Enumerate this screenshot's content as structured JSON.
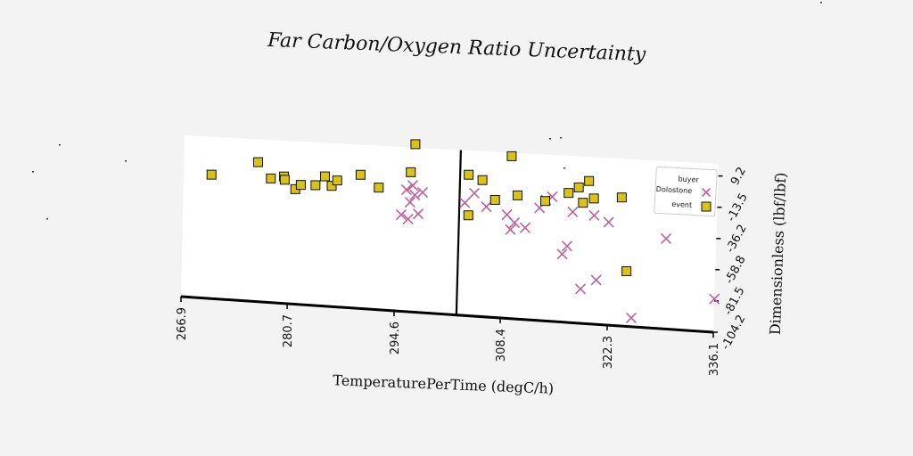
{
  "chart_data": {
    "type": "scatter",
    "title": "Far Carbon/Oxygen Ratio Uncertainty",
    "xlabel": "TemperaturePerTime (degC/h)",
    "ylabel": "Dimensionless (lbf/lbf)",
    "xlim": [
      266.9,
      336.1
    ],
    "ylim": [
      -104.2,
      18.0
    ],
    "x_ticks": [
      "266.9",
      "280.7",
      "294.6",
      "308.4",
      "322.3",
      "336.1"
    ],
    "y_ticks": [
      "9.2",
      "-13.5",
      "-36.2",
      "-58.8",
      "-81.5",
      "-104.2"
    ],
    "vertical_line_x": 302.7,
    "legend": {
      "title": "buyer",
      "placement": "top-right",
      "entries": [
        "Dolostone",
        "event"
      ]
    },
    "series": [
      {
        "name": "Dolostone",
        "marker": "x",
        "color": "#c0609a",
        "points": [
          [
            295.2,
            -32.4
          ],
          [
            295.8,
            -13.6
          ],
          [
            296.6,
            -10.1
          ],
          [
            296.3,
            -22.7
          ],
          [
            296.9,
            -17.2
          ],
          [
            297.4,
            -31.1
          ],
          [
            296.1,
            -35.3
          ],
          [
            297.9,
            -14.9
          ],
          [
            303.4,
            -20.8
          ],
          [
            304.6,
            -13.3
          ],
          [
            306.2,
            -22.8
          ],
          [
            308.9,
            -27.8
          ],
          [
            309.4,
            -38.6
          ],
          [
            309.9,
            -33.4
          ],
          [
            311.3,
            -36.6
          ],
          [
            313.1,
            -21.4
          ],
          [
            313.9,
            -15.3
          ],
          [
            314.7,
            -12.7
          ],
          [
            316.2,
            -54.3
          ],
          [
            316.8,
            -48.2
          ],
          [
            317.4,
            -22.9
          ],
          [
            318.7,
            -79.0
          ],
          [
            320.2,
            -24.6
          ],
          [
            320.7,
            -71.8
          ],
          [
            322.1,
            -28.9
          ],
          [
            325.4,
            -97.8
          ],
          [
            329.6,
            -38.4
          ],
          [
            336.1,
            -80.1
          ]
        ]
      },
      {
        "name": "event",
        "marker": "square",
        "color": "#d9c21a",
        "points": [
          [
            270.5,
            -10.6
          ],
          [
            276.5,
            0.8
          ],
          [
            278.2,
            -10.9
          ],
          [
            279.9,
            -8.9
          ],
          [
            280.0,
            -11.3
          ],
          [
            281.4,
            -17.9
          ],
          [
            282.1,
            -14.5
          ],
          [
            284.0,
            -14.1
          ],
          [
            285.2,
            -7.1
          ],
          [
            286.1,
            -13.9
          ],
          [
            286.8,
            -9.6
          ],
          [
            289.8,
            -4.4
          ],
          [
            292.2,
            -13.2
          ],
          [
            296.8,
            20.6
          ],
          [
            296.3,
            -0.4
          ],
          [
            303.8,
            0.1
          ],
          [
            303.9,
            -29.9
          ],
          [
            305.6,
            -3.3
          ],
          [
            307.3,
            -17.4
          ],
          [
            309.3,
            15.5
          ],
          [
            310.2,
            -13.1
          ],
          [
            313.8,
            -16.1
          ],
          [
            316.8,
            -9.2
          ],
          [
            318.1,
            -4.7
          ],
          [
            318.7,
            -15.8
          ],
          [
            319.4,
            0.4
          ],
          [
            320.1,
            -12.2
          ],
          [
            323.7,
            -10.3
          ],
          [
            324.6,
            -63.9
          ]
        ]
      }
    ]
  }
}
